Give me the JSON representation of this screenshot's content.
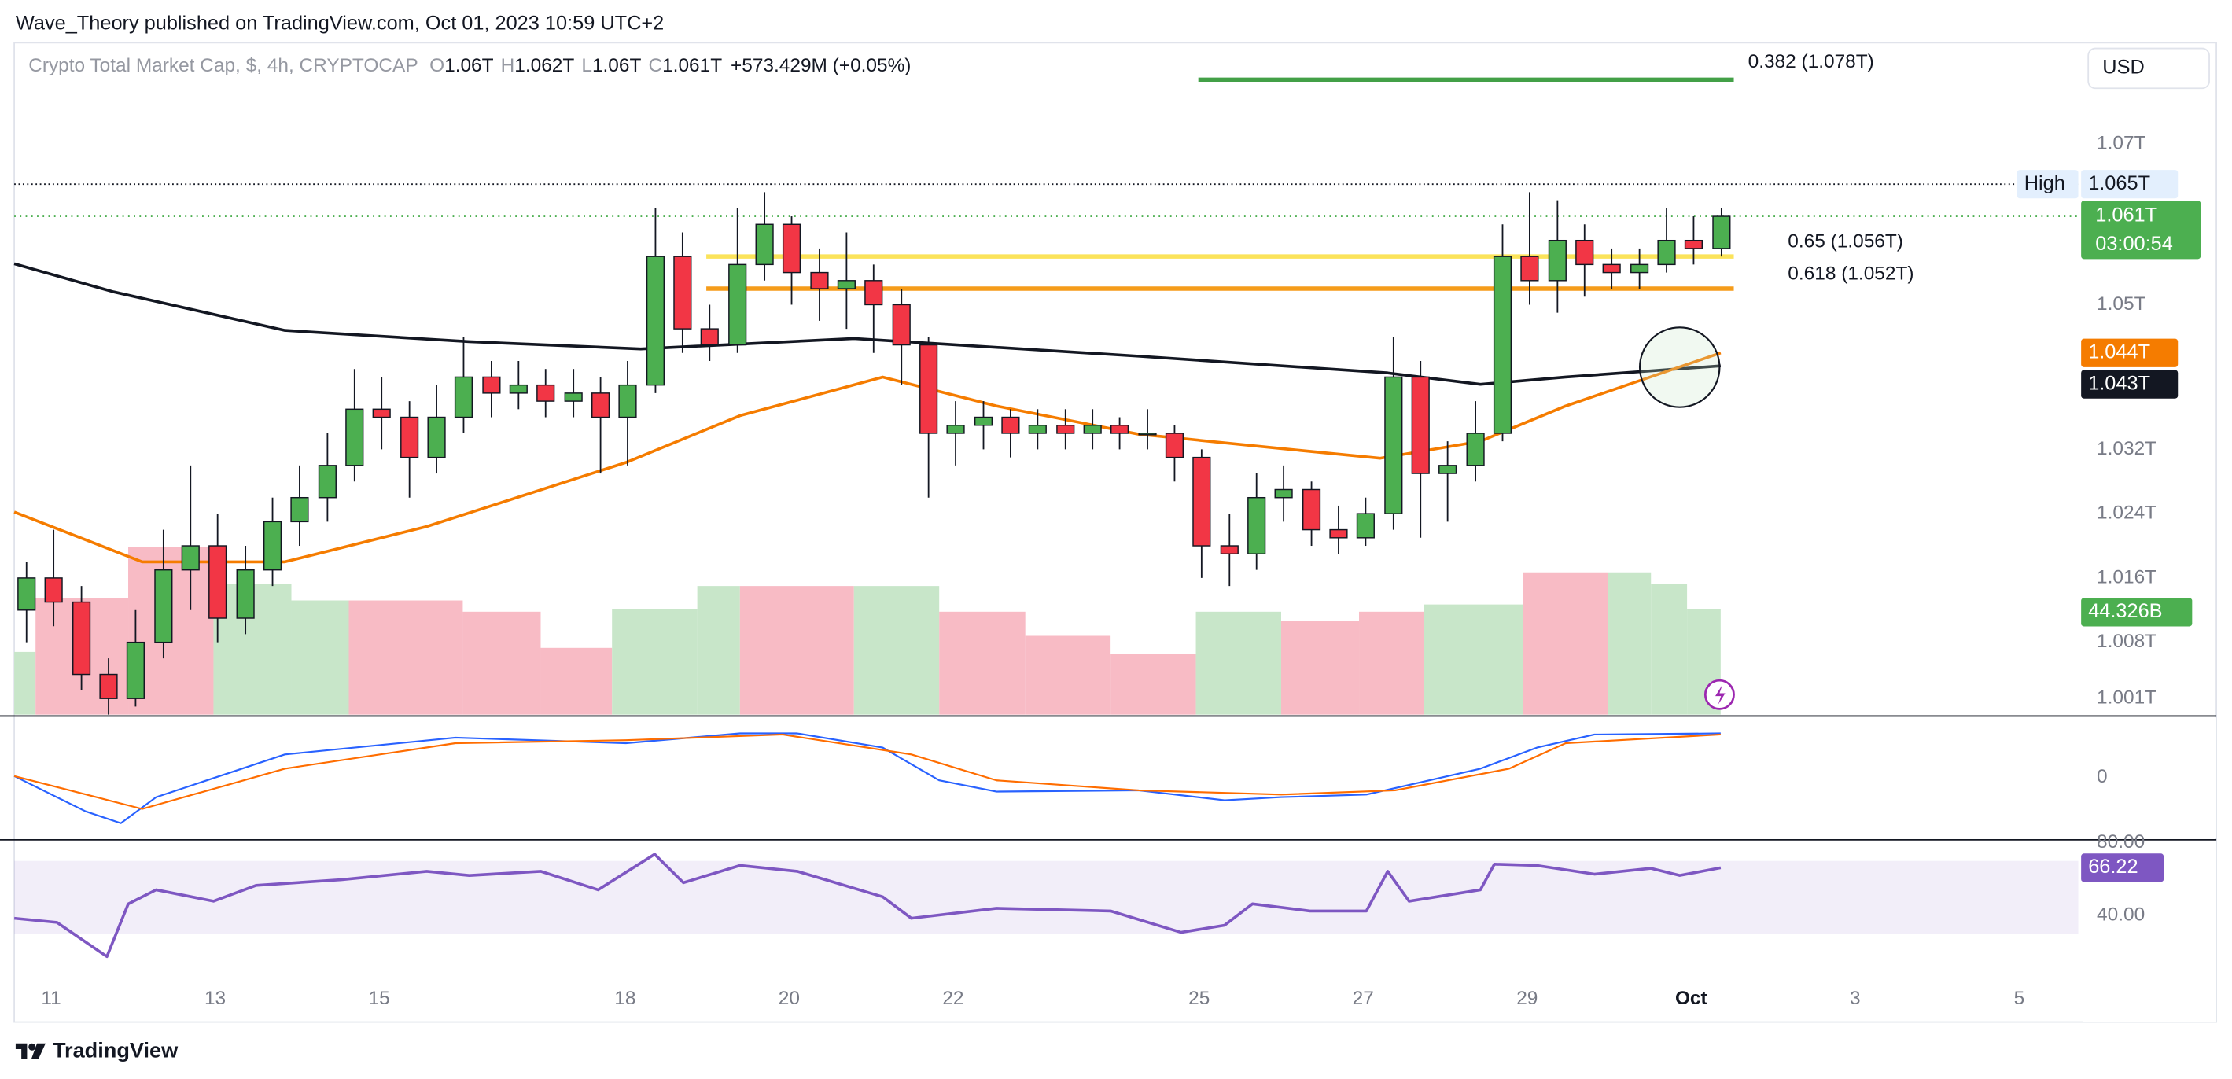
{
  "header": {
    "publisher": "Wave_Theory published on TradingView.com, Oct 01, 2023 10:59 UTC+2",
    "brand": "TradingView"
  },
  "chart_data": {
    "type": "candlestick",
    "symbol": "Crypto Total Market Cap, $, 4h, CRYPTOCAP",
    "ohlc": [
      {
        "key": "O",
        "text": "1.06T"
      },
      {
        "key": "H",
        "text": "1.062T"
      },
      {
        "key": "L",
        "text": "1.06T"
      },
      {
        "key": "C",
        "text": "1.061T"
      }
    ],
    "change": "+573.429M (+0.05%)",
    "currency": "USD",
    "up_color": "#4caf50",
    "down_color": "#f23645",
    "xlim": [
      10.55,
      37.37
    ],
    "xticks": [
      11,
      13,
      15,
      18,
      20,
      22,
      25,
      27,
      29,
      {
        "value": 31,
        "label": "Oct"
      },
      {
        "value": 33,
        "label": "3"
      },
      {
        "value": 35,
        "label": "5"
      }
    ],
    "ylim": [
      0.999,
      1.0826
    ],
    "yticks": [
      {
        "value": 1.07,
        "label": "1.07T"
      },
      {
        "value": 1.05,
        "label": "1.05T"
      },
      {
        "value": 1.032,
        "label": "1.032T"
      },
      {
        "value": 1.024,
        "label": "1.024T"
      },
      {
        "value": 1.016,
        "label": "1.016T"
      },
      {
        "value": 1.008,
        "label": "1.008T"
      },
      {
        "value": 1.001,
        "label": "1.001T"
      }
    ],
    "x": [
      10.7,
      11.03,
      11.37,
      11.7,
      12.03,
      12.37,
      12.7,
      13.03,
      13.37,
      13.7,
      14.03,
      14.37,
      14.7,
      15.03,
      15.37,
      15.7,
      16.03,
      16.37,
      16.7,
      17.03,
      17.37,
      17.7,
      18.03,
      18.37,
      18.7,
      19.03,
      19.37,
      19.7,
      20.03,
      20.37,
      20.7,
      21.03,
      21.37,
      21.7,
      22.03,
      22.37,
      22.7,
      23.03,
      23.37,
      23.7,
      24.03,
      24.37,
      24.7,
      25.03,
      25.37,
      25.7,
      26.03,
      26.37,
      26.7,
      27.03,
      27.37,
      27.7,
      28.03,
      28.37,
      28.7,
      29.03,
      29.37,
      29.7,
      30.03,
      30.37,
      30.7,
      31.03,
      31.37
    ],
    "candles": [
      [
        1.012,
        1.018,
        1.008,
        1.016
      ],
      [
        1.016,
        1.022,
        1.01,
        1.013
      ],
      [
        1.013,
        1.015,
        1.002,
        1.004
      ],
      [
        1.004,
        1.006,
        0.999,
        1.001
      ],
      [
        1.001,
        1.012,
        1.0,
        1.008
      ],
      [
        1.008,
        1.022,
        1.006,
        1.017
      ],
      [
        1.017,
        1.03,
        1.012,
        1.02
      ],
      [
        1.02,
        1.024,
        1.008,
        1.011
      ],
      [
        1.011,
        1.02,
        1.009,
        1.017
      ],
      [
        1.017,
        1.026,
        1.015,
        1.023
      ],
      [
        1.023,
        1.03,
        1.02,
        1.026
      ],
      [
        1.026,
        1.034,
        1.023,
        1.03
      ],
      [
        1.03,
        1.042,
        1.028,
        1.037
      ],
      [
        1.037,
        1.041,
        1.032,
        1.036
      ],
      [
        1.036,
        1.038,
        1.026,
        1.031
      ],
      [
        1.031,
        1.04,
        1.029,
        1.036
      ],
      [
        1.036,
        1.046,
        1.034,
        1.041
      ],
      [
        1.041,
        1.043,
        1.036,
        1.039
      ],
      [
        1.039,
        1.043,
        1.037,
        1.04
      ],
      [
        1.04,
        1.042,
        1.036,
        1.038
      ],
      [
        1.038,
        1.042,
        1.036,
        1.039
      ],
      [
        1.039,
        1.041,
        1.029,
        1.036
      ],
      [
        1.036,
        1.043,
        1.03,
        1.04
      ],
      [
        1.04,
        1.062,
        1.039,
        1.056
      ],
      [
        1.056,
        1.059,
        1.044,
        1.047
      ],
      [
        1.047,
        1.05,
        1.043,
        1.045
      ],
      [
        1.045,
        1.062,
        1.044,
        1.055
      ],
      [
        1.055,
        1.064,
        1.053,
        1.06
      ],
      [
        1.06,
        1.061,
        1.05,
        1.054
      ],
      [
        1.054,
        1.057,
        1.048,
        1.052
      ],
      [
        1.052,
        1.059,
        1.047,
        1.053
      ],
      [
        1.053,
        1.055,
        1.044,
        1.05
      ],
      [
        1.05,
        1.052,
        1.04,
        1.045
      ],
      [
        1.045,
        1.046,
        1.026,
        1.034
      ],
      [
        1.034,
        1.038,
        1.03,
        1.035
      ],
      [
        1.035,
        1.038,
        1.032,
        1.036
      ],
      [
        1.036,
        1.037,
        1.031,
        1.034
      ],
      [
        1.034,
        1.037,
        1.032,
        1.035
      ],
      [
        1.035,
        1.037,
        1.032,
        1.034
      ],
      [
        1.034,
        1.037,
        1.032,
        1.035
      ],
      [
        1.035,
        1.036,
        1.032,
        1.034
      ],
      [
        1.034,
        1.037,
        1.032,
        1.034
      ],
      [
        1.034,
        1.035,
        1.028,
        1.031
      ],
      [
        1.031,
        1.032,
        1.016,
        1.02
      ],
      [
        1.02,
        1.024,
        1.015,
        1.019
      ],
      [
        1.019,
        1.029,
        1.017,
        1.026
      ],
      [
        1.026,
        1.03,
        1.023,
        1.027
      ],
      [
        1.027,
        1.028,
        1.02,
        1.022
      ],
      [
        1.022,
        1.025,
        1.019,
        1.021
      ],
      [
        1.021,
        1.026,
        1.02,
        1.024
      ],
      [
        1.024,
        1.046,
        1.022,
        1.041
      ],
      [
        1.041,
        1.043,
        1.021,
        1.029
      ],
      [
        1.029,
        1.033,
        1.023,
        1.03
      ],
      [
        1.03,
        1.038,
        1.028,
        1.034
      ],
      [
        1.034,
        1.06,
        1.033,
        1.056
      ],
      [
        1.056,
        1.064,
        1.05,
        1.053
      ],
      [
        1.053,
        1.063,
        1.049,
        1.058
      ],
      [
        1.058,
        1.06,
        1.051,
        1.055
      ],
      [
        1.055,
        1.057,
        1.052,
        1.054
      ],
      [
        1.054,
        1.057,
        1.052,
        1.055
      ],
      [
        1.055,
        1.062,
        1.054,
        1.058
      ],
      [
        1.058,
        1.061,
        1.055,
        1.057
      ],
      [
        1.057,
        1.062,
        1.056,
        1.061
      ]
    ],
    "lines": [
      {
        "color": "#131722",
        "x": [
          10.55,
          11.76,
          13.85,
          16.1,
          18.19,
          20.79,
          24.26,
          27.3,
          28.43,
          29.47,
          31.36
        ],
        "values": [
          1.0551,
          1.0516,
          1.0468,
          1.0454,
          1.0445,
          1.0458,
          1.0436,
          1.0415,
          1.0401,
          1.041,
          1.0424
        ],
        "last_label": "1.043T",
        "last_value": 1.043
      },
      {
        "color": "#f57c00",
        "x": [
          10.55,
          12.11,
          13.85,
          15.58,
          18.02,
          19.4,
          21.14,
          22.53,
          24.26,
          26.0,
          27.21,
          28.43,
          29.47,
          31.36
        ],
        "values": [
          1.0242,
          1.018,
          1.018,
          1.0224,
          1.0304,
          1.0362,
          1.041,
          1.0374,
          1.0339,
          1.0321,
          1.0309,
          1.033,
          1.0374,
          1.044
        ],
        "last_label": "1.044T",
        "last_value": 1.044
      }
    ],
    "fib": [
      {
        "label": "0.382 (1.078T)",
        "value": 1.078,
        "color": "#43a047",
        "x": [
          24.99,
          31.52
        ]
      },
      {
        "label": "0.65 (1.056T)",
        "value": 1.056,
        "color": "#fbe35a",
        "x": [
          18.99,
          31.52
        ]
      },
      {
        "label": "0.618 (1.052T)",
        "value": 1.052,
        "color": "#f59c1a",
        "x": [
          18.99,
          31.52
        ]
      }
    ],
    "high": {
      "name": "High",
      "value": 1.065,
      "label": "1.065T"
    },
    "last": {
      "value": 1.061,
      "label": "1.061T",
      "countdown": "03:00:54"
    },
    "volume": {
      "label": "44.326B",
      "bins": [
        10.55,
        10.81,
        11.94,
        12.98,
        13.93,
        14.63,
        16.02,
        16.97,
        17.84,
        18.88,
        19.4,
        20.79,
        21.83,
        22.88,
        23.92,
        24.96,
        26.0,
        26.95,
        27.74,
        28.95,
        29.99,
        30.51,
        30.95,
        31.36
      ],
      "values": [
        1.0068,
        1.0135,
        1.0199,
        1.0153,
        1.0132,
        1.0132,
        1.0118,
        1.0073,
        1.0121,
        1.015,
        1.015,
        1.015,
        1.0118,
        1.0088,
        1.0065,
        1.0118,
        1.0107,
        1.0118,
        1.0127,
        1.0167,
        1.0167,
        1.0153,
        1.0121
      ],
      "colors": [
        "#c8e6c9",
        "#f8bbc5",
        "#f8bbc5",
        "#c8e6c9",
        "#c8e6c9",
        "#f8bbc5",
        "#f8bbc5",
        "#f8bbc5",
        "#c8e6c9",
        "#c8e6c9",
        "#f8bbc5",
        "#c8e6c9",
        "#f8bbc5",
        "#f8bbc5",
        "#f8bbc5",
        "#c8e6c9",
        "#f8bbc5",
        "#f8bbc5",
        "#c8e6c9",
        "#f8bbc5",
        "#c8e6c9",
        "#c8e6c9",
        "#c8e6c9"
      ]
    },
    "macd": {
      "ylim": [
        -1.01,
        0.99
      ],
      "yticks": [
        0
      ],
      "series": [
        {
          "color": "#2962ff",
          "x": [
            10.55,
            11.42,
            11.85,
            12.28,
            13.85,
            15.93,
            18.01,
            19.4,
            20.1,
            21.14,
            21.83,
            22.53,
            24.26,
            25.31,
            26.0,
            27.04,
            28.43,
            29.12,
            29.82,
            31.36
          ],
          "values": [
            0.02,
            -0.55,
            -0.74,
            -0.32,
            0.37,
            0.64,
            0.55,
            0.71,
            0.71,
            0.48,
            -0.05,
            -0.23,
            -0.21,
            -0.37,
            -0.32,
            -0.28,
            0.14,
            0.48,
            0.69,
            0.71
          ]
        },
        {
          "color": "#ff6d00",
          "x": [
            10.55,
            12.11,
            13.85,
            15.93,
            18.01,
            19.92,
            21.49,
            22.53,
            24.26,
            26.0,
            27.39,
            28.78,
            29.47,
            31.36
          ],
          "values": [
            0.02,
            -0.51,
            0.14,
            0.55,
            0.6,
            0.69,
            0.37,
            -0.05,
            -0.21,
            -0.28,
            -0.21,
            0.14,
            0.55,
            0.69
          ]
        }
      ]
    },
    "rsi": {
      "ylim": [
        -18.8,
        81.6
      ],
      "yticks": [
        {
          "value": 80,
          "label": "80.00"
        },
        {
          "value": 40,
          "label": "40.00"
        }
      ],
      "band": [
        30,
        70
      ],
      "color": "#7e57c2",
      "label": "66.22",
      "x": [
        10.55,
        11.07,
        11.68,
        11.94,
        12.28,
        12.98,
        13.5,
        14.54,
        15.58,
        16.1,
        16.97,
        17.67,
        18.36,
        18.71,
        19.4,
        20.1,
        21.14,
        21.49,
        22.53,
        23.92,
        24.78,
        25.31,
        25.65,
        26.35,
        27.04,
        27.3,
        27.56,
        28.43,
        28.6,
        29.12,
        29.82,
        30.51,
        30.86,
        31.36
      ],
      "values": [
        38.4,
        36.1,
        17.3,
        46.3,
        54.1,
        47.8,
        56.5,
        59.6,
        64.3,
        62.0,
        64.3,
        54.1,
        73.7,
        58.0,
        67.5,
        64.3,
        50.2,
        38.4,
        43.9,
        42.4,
        30.6,
        34.5,
        46.3,
        42.4,
        42.4,
        64.3,
        47.8,
        54.1,
        68.2,
        67.5,
        62.7,
        65.9,
        62.0,
        66.22
      ]
    }
  }
}
